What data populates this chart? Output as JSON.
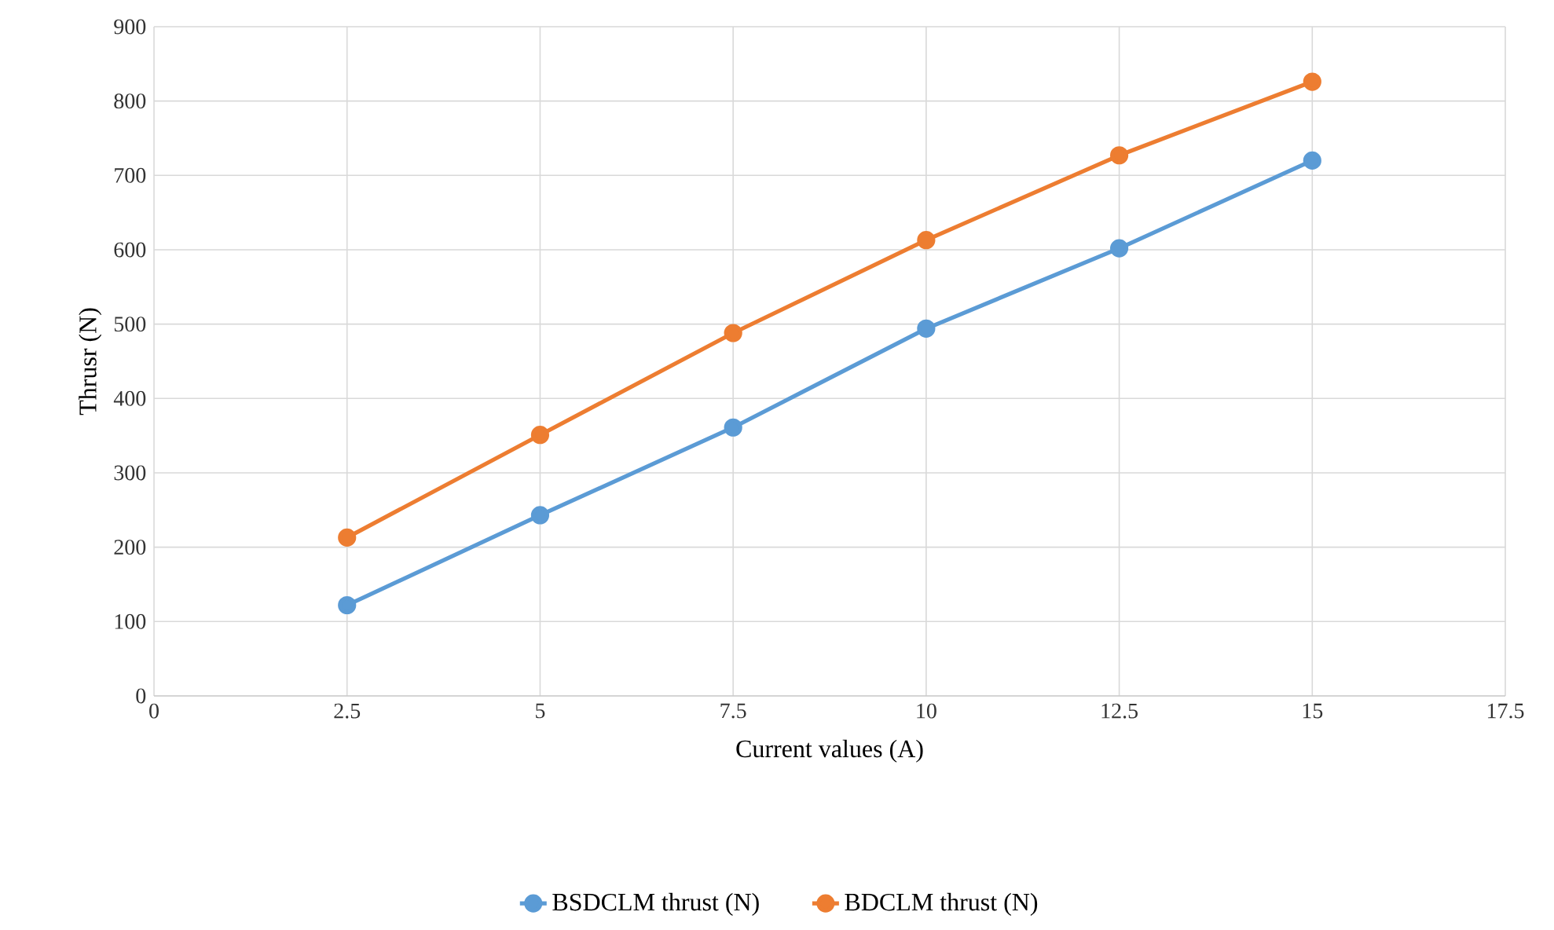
{
  "chart_data": {
    "type": "line",
    "xlabel": "Current values (A)",
    "ylabel": "Thrusr (N)",
    "x": [
      2.5,
      5,
      7.5,
      10,
      12.5,
      15
    ],
    "series": [
      {
        "name": "BSDCLM thrust (N)",
        "color": "#5b9bd5",
        "values": [
          122,
          243,
          361,
          494,
          602,
          720
        ]
      },
      {
        "name": "BDCLM thrust (N)",
        "color": "#ed7d31",
        "values": [
          213,
          351,
          488,
          613,
          727,
          826
        ]
      }
    ],
    "xlim": [
      0,
      17.5
    ],
    "ylim": [
      0,
      900
    ],
    "xticks": [
      0,
      2.5,
      5,
      7.5,
      10,
      12.5,
      15,
      17.5
    ],
    "yticks": [
      0,
      100,
      200,
      300,
      400,
      500,
      600,
      700,
      800,
      900
    ],
    "grid": true,
    "legend": "bottom",
    "marker": "circle",
    "line_style": "solid"
  }
}
